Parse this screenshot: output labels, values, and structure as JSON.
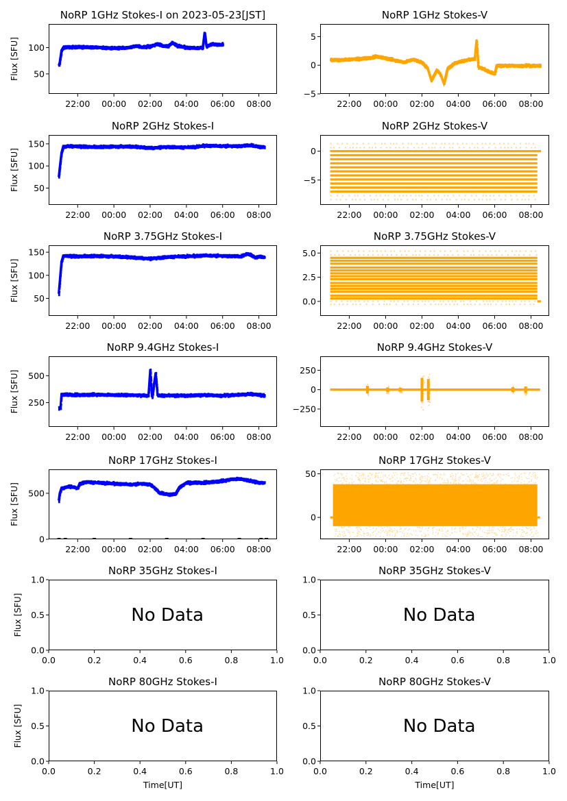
{
  "figure": {
    "date_label": "2023-05-23[JST]",
    "ylabel": "Flux [SFU]",
    "xlabel": "Time[UT]",
    "no_data_label": "No Data",
    "colors": {
      "stokes_i": "#0000ff",
      "stokes_v": "#ffa500"
    }
  },
  "chart_data": [
    {
      "id": "1ghz-i",
      "type": "scatter",
      "title": "NoRP 1GHz Stokes-I on 2023-05-23[JST]",
      "ylabel": "Flux [SFU]",
      "xlabel": "",
      "color": "#0000ff",
      "x_ticks": [
        "22:00",
        "00:00",
        "02:00",
        "04:00",
        "06:00",
        "08:00"
      ],
      "xlim_hours": [
        20.4,
        33.0
      ],
      "ylim": [
        12,
        145
      ],
      "y_ticks": [
        50,
        100
      ],
      "grid": false,
      "series": [
        {
          "name": "Stokes-I",
          "x_hours": [
            20.95,
            21.0,
            21.1,
            21.2,
            21.5,
            22.0,
            23.0,
            24.0,
            24.8,
            25.2,
            25.5,
            26.0,
            26.4,
            26.7,
            27.0,
            27.2,
            27.5,
            28.0,
            28.5,
            28.9,
            29.0,
            29.1,
            29.4,
            29.7,
            30.0
          ],
          "y": [
            66,
            72,
            95,
            101,
            102,
            102,
            101,
            100,
            101,
            104,
            102,
            103,
            108,
            104,
            104,
            110,
            104,
            101,
            100,
            101,
            130,
            103,
            108,
            106,
            107
          ]
        }
      ]
    },
    {
      "id": "1ghz-v",
      "type": "scatter",
      "title": "NoRP 1GHz Stokes-V",
      "ylabel": "",
      "xlabel": "",
      "color": "#ffa500",
      "x_ticks": [
        "22:00",
        "00:00",
        "02:00",
        "04:00",
        "06:00",
        "08:00"
      ],
      "xlim_hours": [
        20.4,
        33.0
      ],
      "ylim": [
        -5,
        7.2
      ],
      "y_ticks": [
        -5,
        0,
        5
      ],
      "grid": false,
      "series": [
        {
          "name": "Stokes-V",
          "x_hours": [
            20.95,
            21.5,
            22.0,
            23.0,
            23.5,
            24.0,
            25.0,
            25.5,
            26.0,
            26.3,
            26.5,
            26.8,
            27.0,
            27.2,
            27.4,
            27.8,
            28.5,
            28.9,
            29.0,
            29.1,
            29.4,
            29.7,
            30.0,
            30.1,
            31.0,
            32.5
          ],
          "y": [
            1.0,
            1.0,
            1.1,
            1.3,
            1.6,
            1.3,
            0.6,
            1.1,
            0.5,
            -0.5,
            -2.6,
            -0.8,
            -1.5,
            -3.2,
            -0.5,
            0.5,
            1.0,
            1.2,
            4.5,
            -0.3,
            -0.6,
            -1.1,
            -1.4,
            0.0,
            0.0,
            0.0
          ]
        }
      ]
    },
    {
      "id": "2ghz-i",
      "type": "scatter",
      "title": "NoRP 2GHz Stokes-I",
      "ylabel": "Flux [SFU]",
      "xlabel": "",
      "color": "#0000ff",
      "x_ticks": [
        "22:00",
        "00:00",
        "02:00",
        "04:00",
        "06:00",
        "08:00"
      ],
      "xlim_hours": [
        20.4,
        33.0
      ],
      "ylim": [
        12,
        170
      ],
      "y_ticks": [
        50,
        100,
        150
      ],
      "grid": false,
      "series": [
        {
          "name": "Stokes-I",
          "x_hours": [
            20.95,
            21.0,
            21.1,
            21.2,
            21.5,
            22.0,
            23.0,
            24.0,
            25.0,
            26.0,
            27.0,
            28.0,
            28.5,
            29.0,
            30.0,
            31.0,
            31.5,
            32.0,
            32.3
          ],
          "y": [
            75,
            95,
            130,
            145,
            146,
            145,
            144,
            145,
            145,
            142,
            144,
            143,
            144,
            147,
            146,
            146,
            148,
            144,
            144
          ]
        }
      ]
    },
    {
      "id": "2ghz-v",
      "type": "scatter",
      "title": "NoRP 2GHz Stokes-V",
      "ylabel": "",
      "xlabel": "",
      "color": "#ffa500",
      "x_ticks": [
        "22:00",
        "00:00",
        "02:00",
        "04:00",
        "06:00",
        "08:00"
      ],
      "xlim_hours": [
        20.4,
        33.0
      ],
      "ylim": [
        -9.3,
        2.8
      ],
      "y_ticks": [
        -5,
        0
      ],
      "grid": false,
      "quantized_levels": [
        1.3,
        0.6,
        0,
        -0.7,
        -1.4,
        -2.1,
        -2.8,
        -3.5,
        -4.2,
        -4.9,
        -5.6,
        -6.3,
        -7.0,
        -7.7,
        -8.4
      ],
      "x_range_hours": [
        20.95,
        32.35
      ]
    },
    {
      "id": "3_75ghz-i",
      "type": "scatter",
      "title": "NoRP 3.75GHz Stokes-I",
      "ylabel": "Flux [SFU]",
      "xlabel": "",
      "color": "#0000ff",
      "x_ticks": [
        "22:00",
        "00:00",
        "02:00",
        "04:00",
        "06:00",
        "08:00"
      ],
      "xlim_hours": [
        20.4,
        33.0
      ],
      "ylim": [
        12,
        165
      ],
      "y_ticks": [
        50,
        100,
        150
      ],
      "grid": false,
      "series": [
        {
          "name": "Stokes-I",
          "x_hours": [
            20.95,
            21.0,
            21.1,
            21.2,
            22.0,
            23.0,
            24.0,
            25.0,
            26.0,
            27.0,
            28.0,
            29.0,
            30.0,
            31.0,
            31.3,
            31.5,
            31.8,
            32.0,
            32.3
          ],
          "y": [
            60,
            85,
            130,
            143,
            142,
            143,
            142,
            140,
            137,
            141,
            142,
            144,
            143,
            142,
            147,
            146,
            139,
            142,
            140
          ]
        }
      ]
    },
    {
      "id": "3_75ghz-v",
      "type": "scatter",
      "title": "NoRP 3.75GHz Stokes-V",
      "ylabel": "",
      "xlabel": "",
      "color": "#ffa500",
      "x_ticks": [
        "22:00",
        "00:00",
        "02:00",
        "04:00",
        "06:00",
        "08:00"
      ],
      "xlim_hours": [
        20.4,
        33.0
      ],
      "ylim": [
        -1.5,
        5.8
      ],
      "y_ticks": [
        0.0,
        2.5,
        5.0
      ],
      "y_tick_labels": [
        "0.0",
        "2.5",
        "5.0"
      ],
      "grid": false,
      "quantized_levels": [
        5.2,
        4.8,
        4.5,
        4.2,
        3.9,
        3.5,
        3.2,
        2.9,
        2.6,
        2.3,
        1.9,
        1.6,
        1.3,
        1.0,
        0.6,
        0.3,
        0.0,
        -0.3
      ],
      "x_range_hours": [
        20.95,
        32.35
      ]
    },
    {
      "id": "9_4ghz-i",
      "type": "scatter",
      "title": "NoRP 9.4GHz Stokes-I",
      "ylabel": "Flux [SFU]",
      "xlabel": "",
      "color": "#0000ff",
      "x_ticks": [
        "22:00",
        "00:00",
        "02:00",
        "04:00",
        "06:00",
        "08:00"
      ],
      "xlim_hours": [
        20.4,
        33.0
      ],
      "ylim": [
        25,
        680
      ],
      "y_ticks": [
        250,
        500
      ],
      "grid": false,
      "series": [
        {
          "name": "Stokes-I",
          "x_hours": [
            20.95,
            21.05,
            21.1,
            22.0,
            23.0,
            24.0,
            25.0,
            25.9,
            26.0,
            26.1,
            26.3,
            26.4,
            27.0,
            28.0,
            29.0,
            30.0,
            31.0,
            31.5,
            32.3
          ],
          "y": [
            200,
            210,
            330,
            325,
            330,
            325,
            325,
            320,
            560,
            300,
            530,
            320,
            320,
            320,
            325,
            320,
            330,
            335,
            320
          ]
        }
      ]
    },
    {
      "id": "9_4ghz-v",
      "type": "scatter",
      "title": "NoRP 9.4GHz Stokes-V",
      "ylabel": "",
      "xlabel": "",
      "color": "#ffa500",
      "x_ticks": [
        "22:00",
        "00:00",
        "02:00",
        "04:00",
        "06:00",
        "08:00"
      ],
      "xlim_hours": [
        20.4,
        33.0
      ],
      "ylim": [
        -480,
        430
      ],
      "y_ticks": [
        -250,
        0,
        250
      ],
      "y_tick_labels": [
        "−250",
        "0",
        "250"
      ],
      "grid": false,
      "bursts_hours": [
        {
          "x": 23.0,
          "amp": 120
        },
        {
          "x": 24.1,
          "amp": 70
        },
        {
          "x": 24.8,
          "amp": 60
        },
        {
          "x": 26.0,
          "amp": 380
        },
        {
          "x": 26.35,
          "amp": 340
        },
        {
          "x": 31.0,
          "amp": 80
        },
        {
          "x": 31.7,
          "amp": 100
        }
      ],
      "x_range_hours": [
        20.95,
        32.5
      ],
      "baseline": 0
    },
    {
      "id": "17ghz-i",
      "type": "scatter",
      "title": "NoRP 17GHz Stokes-I",
      "ylabel": "Flux [SFU]",
      "xlabel": "",
      "color": "#0000ff",
      "x_ticks": [
        "22:00",
        "00:00",
        "02:00",
        "04:00",
        "06:00",
        "08:00"
      ],
      "xlim_hours": [
        20.4,
        33.0
      ],
      "ylim": [
        0,
        760
      ],
      "y_ticks": [
        0,
        500
      ],
      "grid": false,
      "series": [
        {
          "name": "Stokes-I",
          "x_hours": [
            20.95,
            21.0,
            21.1,
            21.5,
            22.0,
            22.1,
            22.5,
            23.0,
            24.0,
            25.0,
            25.5,
            26.0,
            26.5,
            27.0,
            27.4,
            27.6,
            28.0,
            29.0,
            30.0,
            30.5,
            31.0,
            31.5,
            32.0,
            32.3
          ],
          "y": [
            420,
            500,
            560,
            580,
            560,
            610,
            630,
            620,
            610,
            600,
            610,
            600,
            510,
            490,
            500,
            570,
            620,
            620,
            640,
            660,
            660,
            640,
            620,
            620
          ]
        }
      ],
      "zero_markers_hours": [
        20.95,
        21.3,
        22.9,
        24.9,
        26.9,
        28.9,
        30.9,
        32.1,
        32.4
      ]
    },
    {
      "id": "17ghz-v",
      "type": "scatter",
      "title": "NoRP 17GHz Stokes-V",
      "ylabel": "",
      "xlabel": "",
      "color": "#ffa500",
      "x_ticks": [
        "22:00",
        "00:00",
        "02:00",
        "04:00",
        "06:00",
        "08:00"
      ],
      "xlim_hours": [
        20.4,
        33.0
      ],
      "ylim": [
        -25,
        55
      ],
      "y_ticks": [
        0,
        50
      ],
      "grid": false,
      "band": {
        "low": -10,
        "high": 38
      },
      "x_range_hours": [
        20.95,
        32.5
      ]
    },
    {
      "id": "35ghz-i",
      "type": "empty",
      "title": "NoRP 35GHz Stokes-I",
      "ylabel": "Flux [SFU]",
      "xlabel": "",
      "xlim": [
        0,
        1
      ],
      "ylim": [
        0,
        1
      ],
      "x_ticks": [
        "0.0",
        "0.2",
        "0.4",
        "0.6",
        "0.8",
        "1.0"
      ],
      "y_ticks": [
        "0.0",
        "0.5",
        "1.0"
      ],
      "annotation": "No Data"
    },
    {
      "id": "35ghz-v",
      "type": "empty",
      "title": "NoRP 35GHz Stokes-V",
      "ylabel": "",
      "xlabel": "",
      "xlim": [
        0,
        1
      ],
      "ylim": [
        0,
        1
      ],
      "x_ticks": [
        "0.0",
        "0.2",
        "0.4",
        "0.6",
        "0.8",
        "1.0"
      ],
      "y_ticks": [
        "0.0",
        "0.5",
        "1.0"
      ],
      "annotation": "No Data"
    },
    {
      "id": "80ghz-i",
      "type": "empty",
      "title": "NoRP 80GHz Stokes-I",
      "ylabel": "Flux [SFU]",
      "xlabel": "Time[UT]",
      "xlim": [
        0,
        1
      ],
      "ylim": [
        0,
        1
      ],
      "x_ticks": [
        "0.0",
        "0.2",
        "0.4",
        "0.6",
        "0.8",
        "1.0"
      ],
      "y_ticks": [
        "0.0",
        "0.5",
        "1.0"
      ],
      "annotation": "No Data"
    },
    {
      "id": "80ghz-v",
      "type": "empty",
      "title": "NoRP 80GHz Stokes-V",
      "ylabel": "",
      "xlabel": "Time[UT]",
      "xlim": [
        0,
        1
      ],
      "ylim": [
        0,
        1
      ],
      "x_ticks": [
        "0.0",
        "0.2",
        "0.4",
        "0.6",
        "0.8",
        "1.0"
      ],
      "y_ticks": [
        "0.0",
        "0.5",
        "1.0"
      ],
      "annotation": "No Data"
    }
  ]
}
